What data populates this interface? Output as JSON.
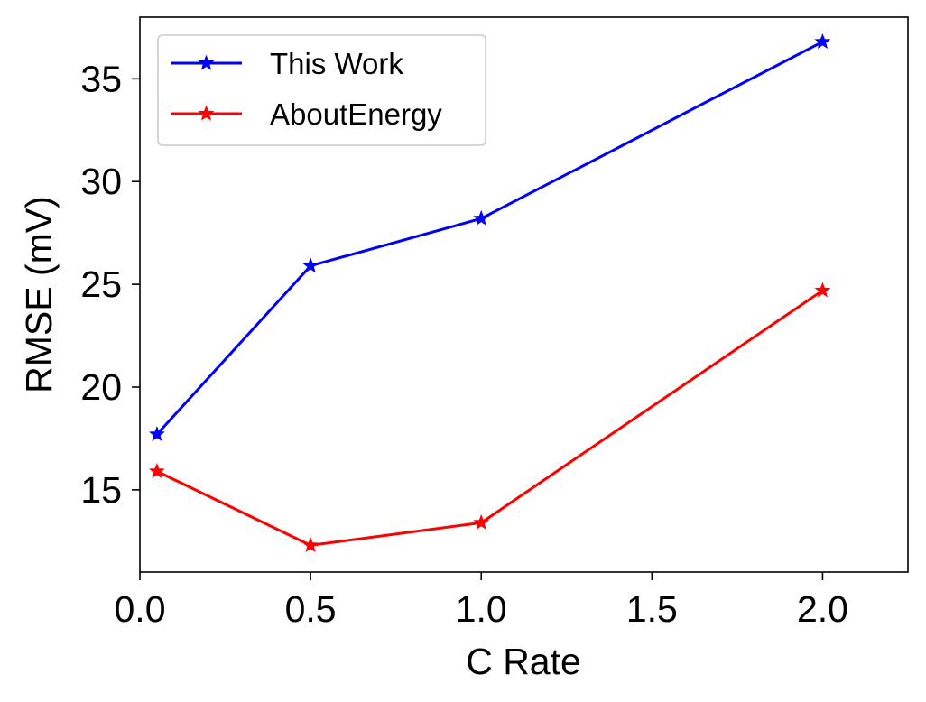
{
  "chart_data": {
    "type": "line",
    "xlabel": "C Rate",
    "ylabel": "RMSE (mV)",
    "xlim": [
      0.0,
      2.25
    ],
    "ylim": [
      11.0,
      38.0
    ],
    "xticks": [
      0.0,
      0.5,
      1.0,
      1.5,
      2.0
    ],
    "xtick_labels": [
      "0.0",
      "0.5",
      "1.0",
      "1.5",
      "2.0"
    ],
    "yticks": [
      15,
      20,
      25,
      30,
      35
    ],
    "ytick_labels": [
      "15",
      "20",
      "25",
      "30",
      "35"
    ],
    "grid": false,
    "legend_position": "top-left",
    "marker": "star",
    "series": [
      {
        "name": "This Work",
        "color": "#0000ff",
        "x": [
          0.05,
          0.5,
          1.0,
          2.0
        ],
        "y": [
          17.7,
          25.9,
          28.2,
          36.8
        ]
      },
      {
        "name": "AboutEnergy",
        "color": "#ff0000",
        "x": [
          0.05,
          0.5,
          1.0,
          2.0
        ],
        "y": [
          15.9,
          12.3,
          13.4,
          24.7
        ]
      }
    ]
  }
}
